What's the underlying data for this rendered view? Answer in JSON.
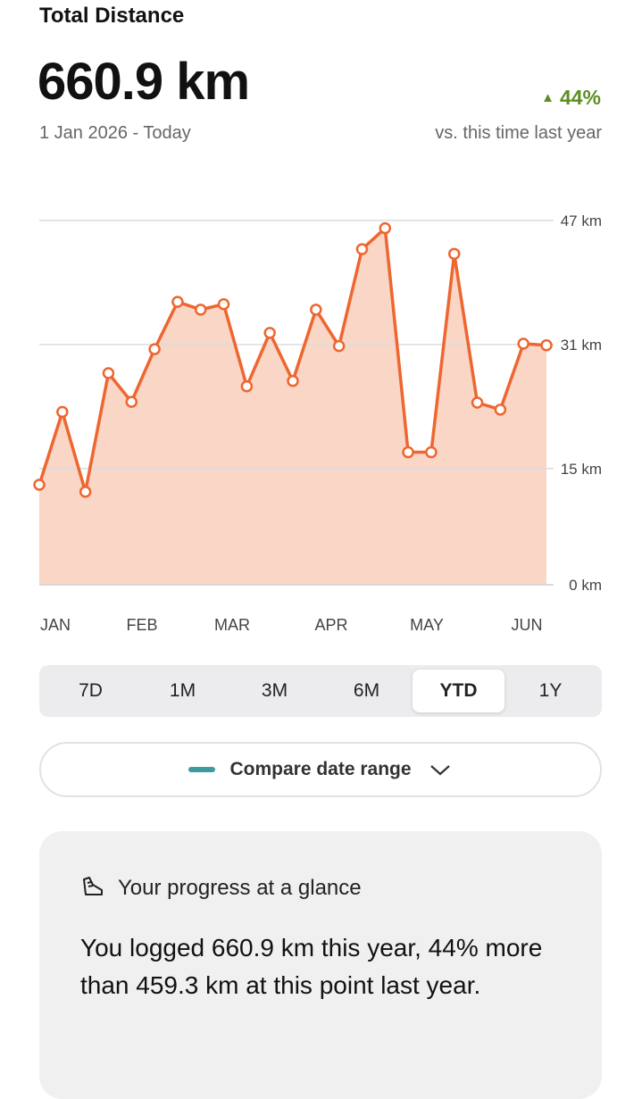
{
  "header": {
    "title": "Total Distance",
    "total": "660.9 km",
    "date_range": "1 Jan 2026 - Today",
    "change": "44%",
    "change_caption": "vs. this time last year"
  },
  "chart_data": {
    "type": "area",
    "color": "#ee6630",
    "fill": "#f9d6c6",
    "ylim": [
      0,
      47
    ],
    "yticks": [
      {
        "value": 0,
        "label": "0 km"
      },
      {
        "value": 15,
        "label": "15 km"
      },
      {
        "value": 31,
        "label": "31 km"
      },
      {
        "value": 47,
        "label": "47 km"
      }
    ],
    "grid": true,
    "values": [
      12.9,
      22.3,
      12.0,
      27.3,
      23.6,
      30.4,
      36.5,
      35.5,
      36.2,
      25.6,
      32.5,
      26.3,
      35.5,
      30.8,
      43.3,
      46.0,
      17.1,
      17.1,
      42.7,
      23.5,
      22.6,
      31.1,
      30.9
    ],
    "month_labels": [
      "JAN",
      "FEB",
      "MAR",
      "APR",
      "MAY",
      "JUN"
    ]
  },
  "range_tabs": {
    "options": [
      "7D",
      "1M",
      "3M",
      "6M",
      "YTD",
      "1Y"
    ],
    "selected": "YTD"
  },
  "compare_button": "Compare date range",
  "summary": {
    "title": "Your progress at a glance",
    "text": "You logged 660.9 km this year, 44% more than 459.3 km at this point last year."
  }
}
